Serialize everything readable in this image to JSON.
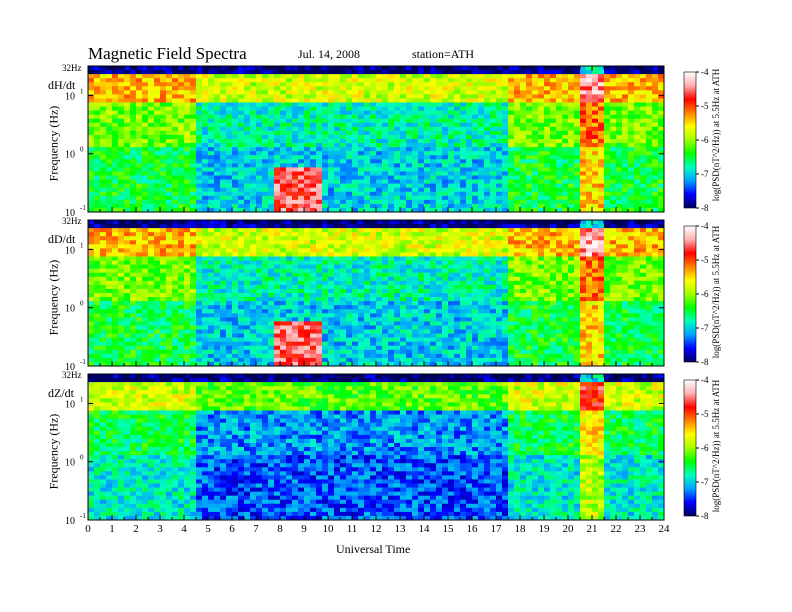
{
  "header": {
    "title": "Magnetic Field Spectra",
    "date": "Jul. 14, 2008",
    "station": "station=ATH"
  },
  "chart_data": {
    "type": "heatmap",
    "title": "Magnetic Field Spectra",
    "xlabel": "Universal Time",
    "ylabel": "Frequency (Hz)",
    "xlim": [
      0,
      24
    ],
    "x_ticks": [
      "0",
      "1",
      "2",
      "3",
      "4",
      "5",
      "6",
      "7",
      "8",
      "9",
      "10",
      "11",
      "12",
      "13",
      "14",
      "15",
      "16",
      "17",
      "18",
      "19",
      "20",
      "21",
      "22",
      "23",
      "24"
    ],
    "y_scale": "log",
    "ylim": [
      0.1,
      32
    ],
    "top_label": "32Hz",
    "y_tick_base": "10",
    "y_ticks": [
      {
        "value": 10,
        "exp": "1"
      },
      {
        "value": 1,
        "exp": "0"
      },
      {
        "value": 0.1,
        "exp": "-1"
      }
    ],
    "panels": [
      {
        "name": "dH/dt",
        "colorbar_label": "log(PSD(nT^2/Hz)) at 5.5Hz at ATH"
      },
      {
        "name": "dD/dt",
        "colorbar_label": "log(PSD(nT^2/Hz)) at 5.5Hz at ATH"
      },
      {
        "name": "dZ/dt",
        "colorbar_label": "log(PSD(nT^2/Hz)) at 5.5Hz at ATH"
      }
    ],
    "colorbar": {
      "ticks": [
        "-4",
        "-5",
        "-6",
        "-7",
        "-8"
      ],
      "range": [
        -8,
        -4
      ],
      "colors": [
        "#000060",
        "#0000ff",
        "#00a0ff",
        "#00ffc0",
        "#00ff00",
        "#a0ff00",
        "#ffff00",
        "#ff8000",
        "#ff0000",
        "#ffb0b0",
        "#ffffff"
      ]
    }
  }
}
